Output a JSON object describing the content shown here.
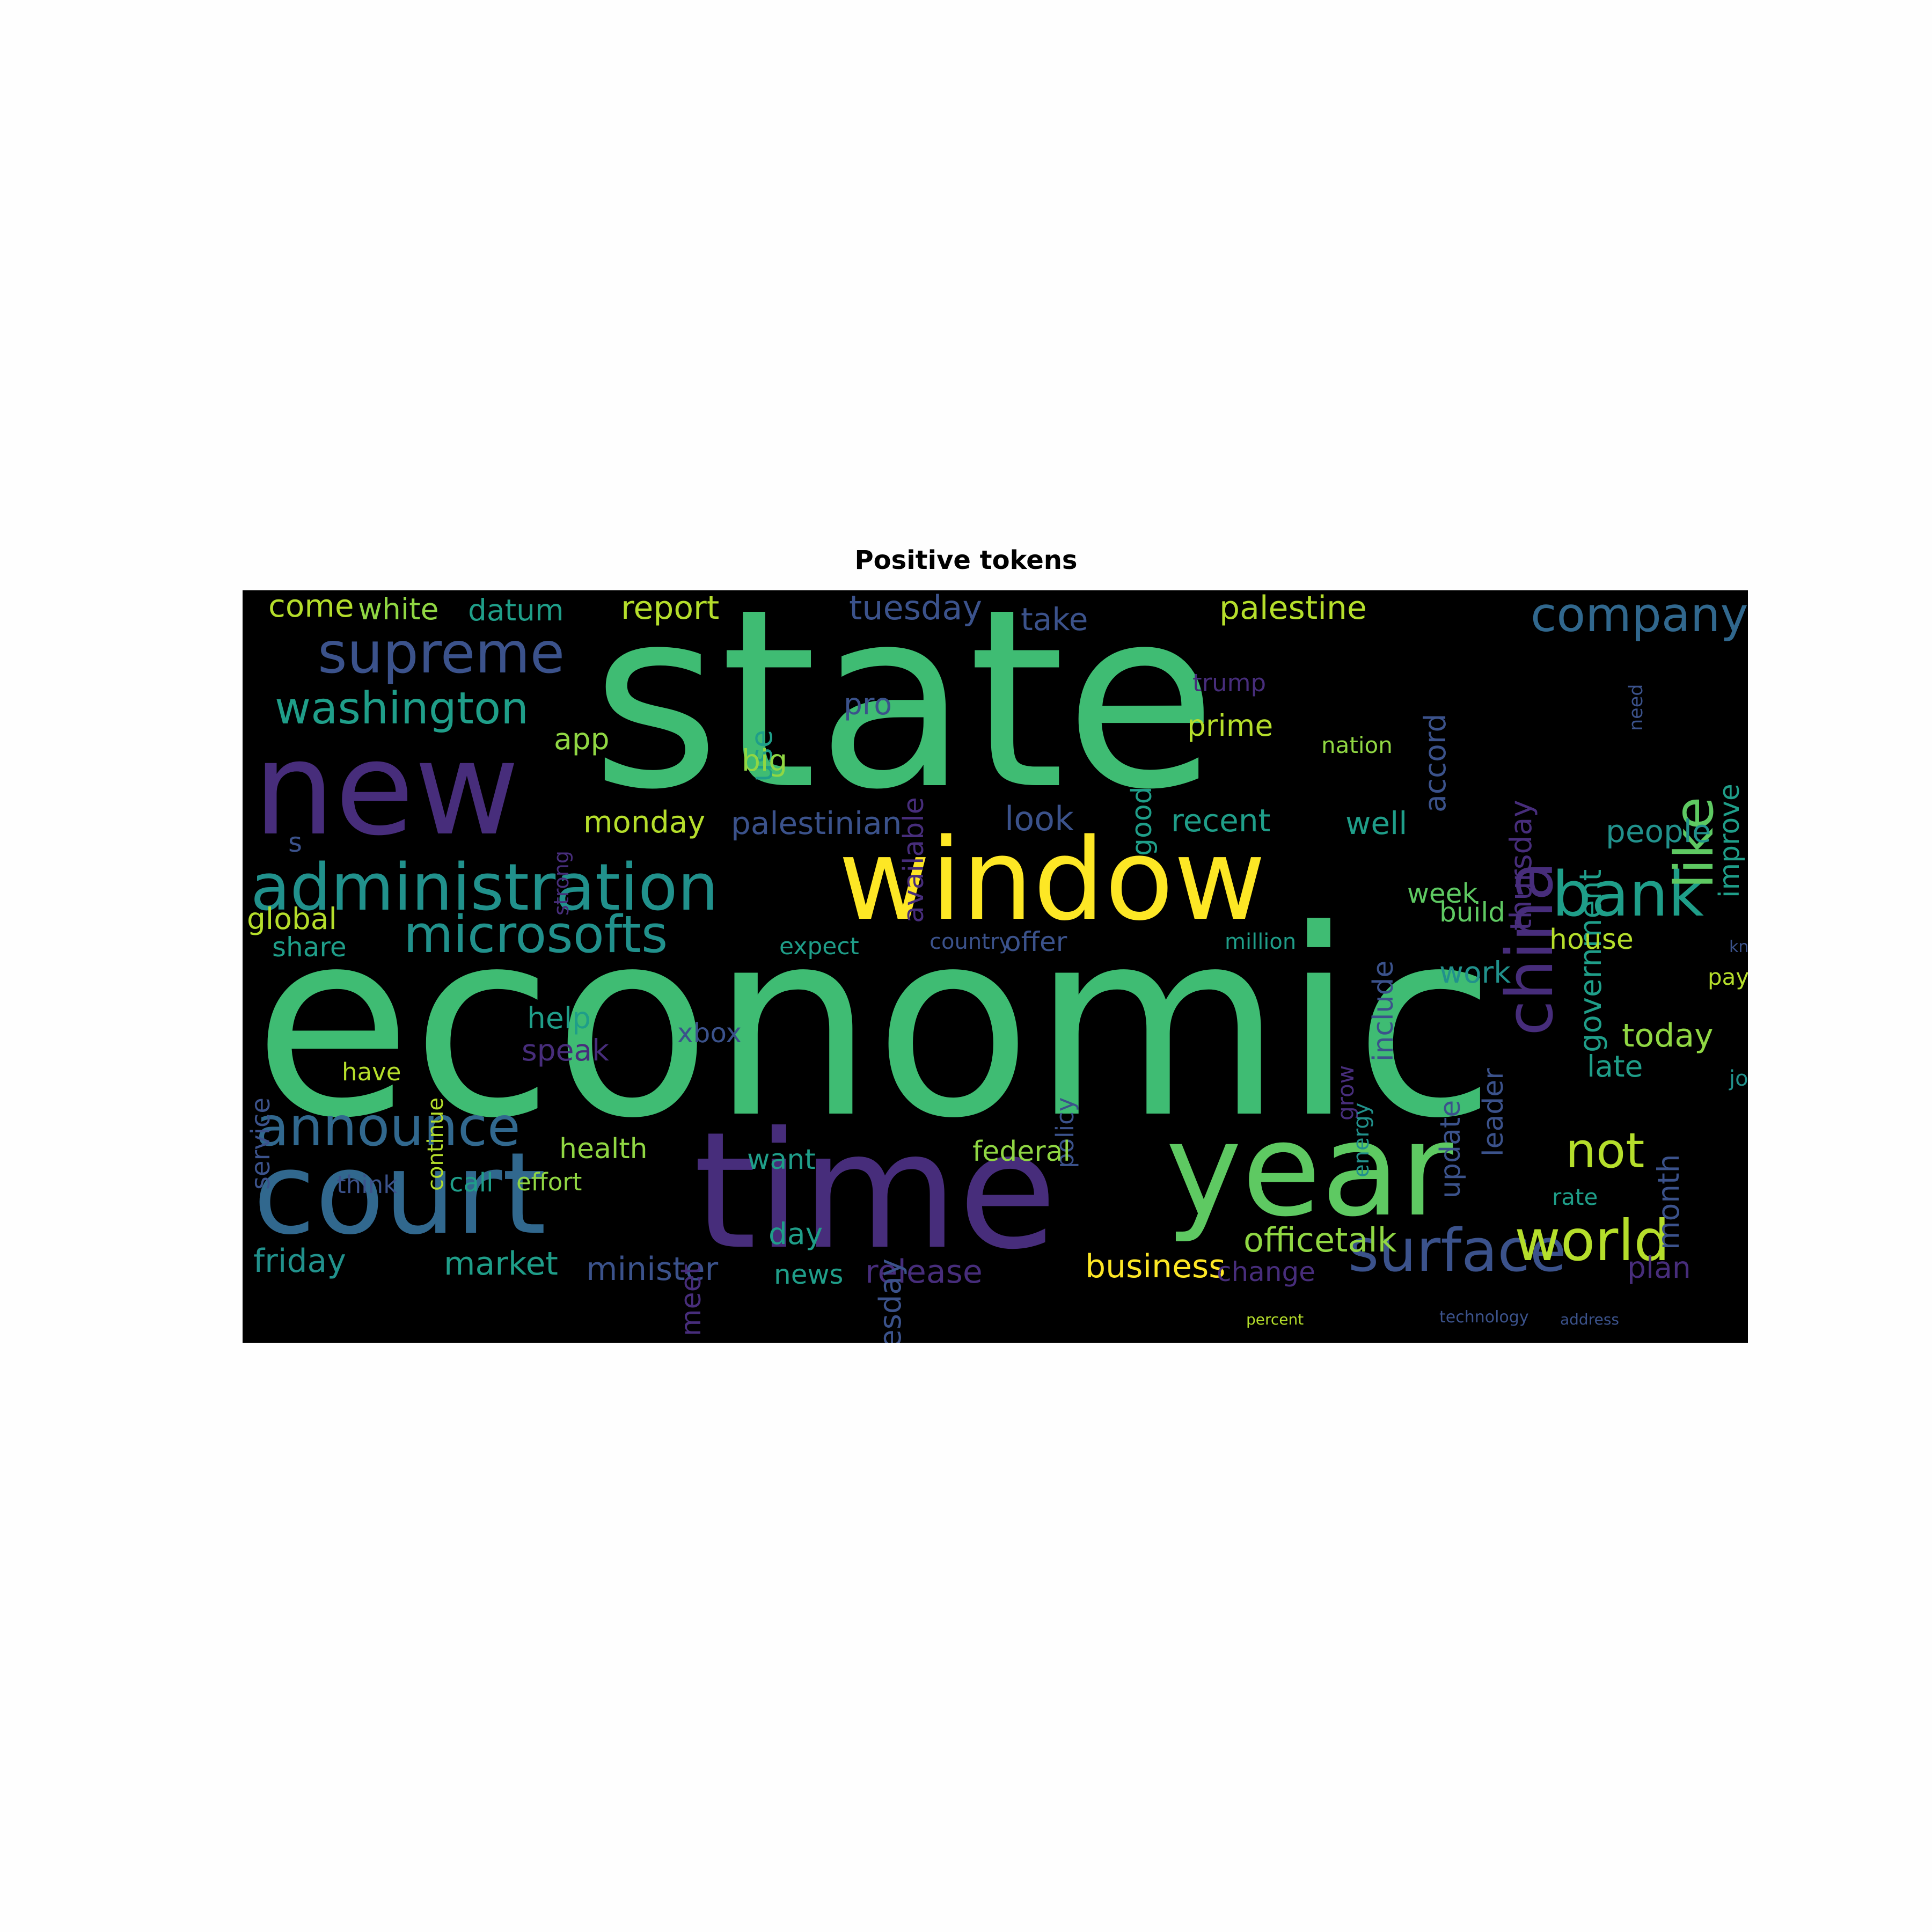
{
  "title": "Positive tokens",
  "palette": {
    "green": "#3fbc73",
    "lime": "#5ec962",
    "teal": "#21918c",
    "cyan": "#1f9e89",
    "blue": "#31688e",
    "steel": "#3b528b",
    "indigo": "#472d7b",
    "purple": "#440154",
    "yellow": "#fde725",
    "olive": "#b5de2b",
    "ygreen": "#90d743"
  },
  "words": [
    {
      "text": "economic",
      "color": "green"
    },
    {
      "text": "state",
      "color": "green"
    },
    {
      "text": "window",
      "color": "yellow"
    },
    {
      "text": "time",
      "color": "indigo"
    },
    {
      "text": "new",
      "color": "indigo"
    },
    {
      "text": "year",
      "color": "lime"
    },
    {
      "text": "court",
      "color": "blue"
    },
    {
      "text": "administration",
      "color": "teal"
    },
    {
      "text": "china",
      "color": "indigo"
    },
    {
      "text": "bank",
      "color": "cyan"
    },
    {
      "text": "supreme",
      "color": "steel"
    },
    {
      "text": "microsofts",
      "color": "teal"
    },
    {
      "text": "surface",
      "color": "steel"
    },
    {
      "text": "like",
      "color": "lime"
    },
    {
      "text": "company",
      "color": "blue"
    },
    {
      "text": "world",
      "color": "olive"
    },
    {
      "text": "washington",
      "color": "cyan"
    },
    {
      "text": "announce",
      "color": "blue"
    },
    {
      "text": "not",
      "color": "olive"
    },
    {
      "text": "palestine",
      "color": "olive"
    },
    {
      "text": "officetalk",
      "color": "ygreen"
    },
    {
      "text": "tuesday",
      "color": "steel"
    },
    {
      "text": "report",
      "color": "olive"
    },
    {
      "text": "government",
      "color": "cyan"
    },
    {
      "text": "people",
      "color": "teal"
    },
    {
      "text": "business",
      "color": "yellow"
    },
    {
      "text": "release",
      "color": "indigo"
    },
    {
      "text": "minister",
      "color": "steel"
    },
    {
      "text": "market",
      "color": "cyan"
    },
    {
      "text": "friday",
      "color": "teal"
    },
    {
      "text": "plan",
      "color": "indigo"
    },
    {
      "text": "thursday",
      "color": "indigo"
    },
    {
      "text": "accord",
      "color": "steel"
    },
    {
      "text": "palestinian",
      "color": "steel"
    },
    {
      "text": "look",
      "color": "steel"
    },
    {
      "text": "recent",
      "color": "cyan"
    },
    {
      "text": "well",
      "color": "cyan"
    },
    {
      "text": "monday",
      "color": "olive"
    },
    {
      "text": "improve",
      "color": "cyan"
    },
    {
      "text": "wednesday",
      "color": "steel"
    },
    {
      "text": "today",
      "color": "ygreen"
    },
    {
      "text": "late",
      "color": "cyan"
    },
    {
      "text": "take",
      "color": "steel"
    },
    {
      "text": "datum",
      "color": "cyan"
    },
    {
      "text": "white",
      "color": "ygreen"
    },
    {
      "text": "come",
      "color": "olive"
    },
    {
      "text": "app",
      "color": "ygreen"
    },
    {
      "text": "pro",
      "color": "steel"
    },
    {
      "text": "use",
      "color": "cyan"
    },
    {
      "text": "big",
      "color": "ygreen"
    },
    {
      "text": "available",
      "color": "indigo"
    },
    {
      "text": "good",
      "color": "cyan"
    },
    {
      "text": "prime",
      "color": "olive"
    },
    {
      "text": "trump",
      "color": "indigo"
    },
    {
      "text": "nation",
      "color": "ygreen"
    },
    {
      "text": "global",
      "color": "olive"
    },
    {
      "text": "share",
      "color": "cyan"
    },
    {
      "text": "expect",
      "color": "cyan"
    },
    {
      "text": "country",
      "color": "steel"
    },
    {
      "text": "offer",
      "color": "steel"
    },
    {
      "text": "million",
      "color": "cyan"
    },
    {
      "text": "include",
      "color": "steel"
    },
    {
      "text": "week",
      "color": "lime"
    },
    {
      "text": "build",
      "color": "lime"
    },
    {
      "text": "house",
      "color": "olive"
    },
    {
      "text": "work",
      "color": "teal"
    },
    {
      "text": "help",
      "color": "cyan"
    },
    {
      "text": "speak",
      "color": "indigo"
    },
    {
      "text": "xbox",
      "color": "steel"
    },
    {
      "text": "service",
      "color": "steel"
    },
    {
      "text": "continue",
      "color": "olive"
    },
    {
      "text": "policy",
      "color": "steel"
    },
    {
      "text": "grow",
      "color": "indigo"
    },
    {
      "text": "energy",
      "color": "teal"
    },
    {
      "text": "update",
      "color": "steel"
    },
    {
      "text": "leader",
      "color": "steel"
    },
    {
      "text": "month",
      "color": "steel"
    },
    {
      "text": "job",
      "color": "teal"
    },
    {
      "text": "have",
      "color": "olive"
    },
    {
      "text": "health",
      "color": "ygreen"
    },
    {
      "text": "want",
      "color": "cyan"
    },
    {
      "text": "federal",
      "color": "ygreen"
    },
    {
      "text": "think",
      "color": "steel"
    },
    {
      "text": "call",
      "color": "cyan"
    },
    {
      "text": "effort",
      "color": "ygreen"
    },
    {
      "text": "day",
      "color": "cyan"
    },
    {
      "text": "meet",
      "color": "indigo"
    },
    {
      "text": "rate",
      "color": "cyan"
    },
    {
      "text": "change",
      "color": "indigo"
    },
    {
      "text": "news",
      "color": "cyan"
    },
    {
      "text": "pay",
      "color": "olive"
    },
    {
      "text": "s",
      "color": "steel"
    },
    {
      "text": "strong",
      "color": "indigo"
    },
    {
      "text": "need",
      "color": "steel"
    },
    {
      "text": "know",
      "color": "steel"
    },
    {
      "text": "percent",
      "color": "olive"
    },
    {
      "text": "technology",
      "color": "steel"
    },
    {
      "text": "address",
      "color": "steel"
    }
  ]
}
